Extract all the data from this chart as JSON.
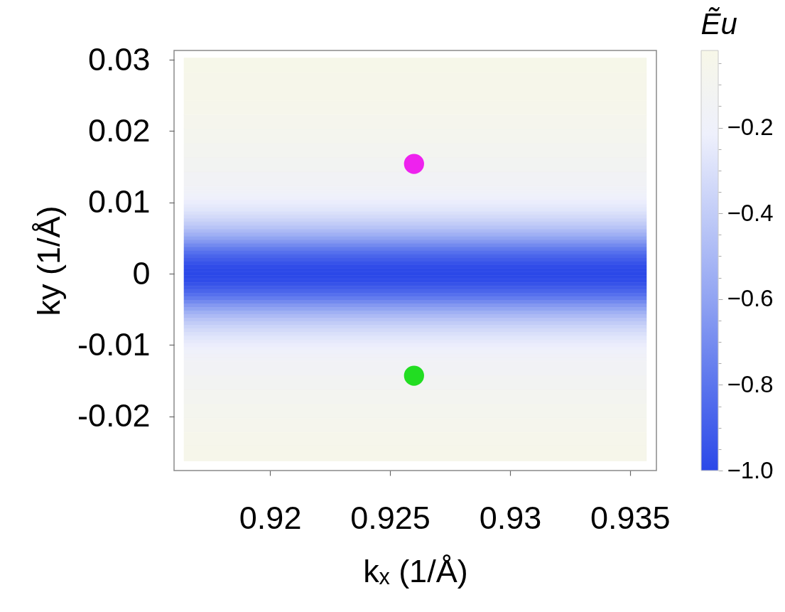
{
  "chart_data": {
    "type": "scatter",
    "xlabel": "kₓ (1/Å)",
    "ylabel": "ky (1/Å)",
    "clabel": "Ẽu",
    "xlim": [
      0.916,
      0.9361
    ],
    "ylim": [
      -0.0276,
      0.0313
    ],
    "xticks": [
      0.92,
      0.925,
      0.93,
      0.935
    ],
    "yticks": [
      0.03,
      0.02,
      0.01,
      0,
      -0.01,
      -0.02
    ],
    "clim": [
      -1.0,
      -0.02
    ],
    "cticks": [
      {
        "value": -1.0,
        "label": "−1.0"
      },
      {
        "value": -0.95,
        "label": null
      },
      {
        "value": -0.9,
        "label": null
      },
      {
        "value": -0.85,
        "label": null
      },
      {
        "value": -0.8,
        "label": "−0.8"
      },
      {
        "value": -0.75,
        "label": null
      },
      {
        "value": -0.7,
        "label": null
      },
      {
        "value": -0.65,
        "label": null
      },
      {
        "value": -0.6,
        "label": "−0.6"
      },
      {
        "value": -0.55,
        "label": null
      },
      {
        "value": -0.5,
        "label": null
      },
      {
        "value": -0.45,
        "label": null
      },
      {
        "value": -0.4,
        "label": "−0.4"
      },
      {
        "value": -0.35,
        "label": null
      },
      {
        "value": -0.3,
        "label": null
      },
      {
        "value": -0.25,
        "label": null
      },
      {
        "value": -0.2,
        "label": "−0.2"
      },
      {
        "value": -0.15,
        "label": null
      },
      {
        "value": -0.1,
        "label": null
      },
      {
        "value": -0.05,
        "label": null
      }
    ],
    "series": [
      {
        "x": [
          0.926
        ],
        "values": [
          0.0154
        ],
        "color": "#ee22ee"
      },
      {
        "x": [
          0.926
        ],
        "values": [
          -0.0143
        ],
        "color": "#22dd22"
      }
    ],
    "marker": "circle",
    "bands": [
      {
        "axis": "y",
        "from": 0.02825,
        "to": 0.03025,
        "color": "#f6f7e9"
      },
      {
        "axis": "y",
        "from": 0.02425,
        "to": 0.02825,
        "color": "#f6f6ea"
      },
      {
        "axis": "y",
        "from": 0.02225,
        "to": 0.02425,
        "color": "#f6f6eb"
      },
      {
        "axis": "y",
        "from": 0.02025,
        "to": 0.02225,
        "color": "#f5f5ed"
      },
      {
        "axis": "y",
        "from": 0.01825,
        "to": 0.02025,
        "color": "#f4f5ee"
      },
      {
        "axis": "y",
        "from": 0.01625,
        "to": 0.01825,
        "color": "#f3f4f0"
      },
      {
        "axis": "y",
        "from": 0.01425,
        "to": 0.01625,
        "color": "#f2f3f2"
      },
      {
        "axis": "y",
        "from": 0.01225,
        "to": 0.01425,
        "color": "#f1f2f5"
      },
      {
        "axis": "y",
        "from": 0.01175,
        "to": 0.01225,
        "color": "#f0f2f7"
      },
      {
        "axis": "y",
        "from": 0.01125,
        "to": 0.01175,
        "color": "#f0f1f8"
      },
      {
        "axis": "y",
        "from": 0.01075,
        "to": 0.01125,
        "color": "#eff1fa"
      },
      {
        "axis": "y",
        "from": 0.01025,
        "to": 0.01075,
        "color": "#eef0fb"
      },
      {
        "axis": "y",
        "from": 0.00975,
        "to": 0.01025,
        "color": "#ebedfc"
      },
      {
        "axis": "y",
        "from": 0.00925,
        "to": 0.00975,
        "color": "#e6e9fb"
      },
      {
        "axis": "y",
        "from": 0.00875,
        "to": 0.00925,
        "color": "#e1e6fb"
      },
      {
        "axis": "y",
        "from": 0.00825,
        "to": 0.00875,
        "color": "#dae0fa"
      },
      {
        "axis": "y",
        "from": 0.00775,
        "to": 0.00825,
        "color": "#d3daf9"
      },
      {
        "axis": "y",
        "from": 0.00725,
        "to": 0.00775,
        "color": "#cbd4f8"
      },
      {
        "axis": "y",
        "from": 0.00675,
        "to": 0.00725,
        "color": "#c2ccf7"
      },
      {
        "axis": "y",
        "from": 0.00625,
        "to": 0.00675,
        "color": "#b8c4f6"
      },
      {
        "axis": "y",
        "from": 0.00575,
        "to": 0.00625,
        "color": "#acbaf5"
      },
      {
        "axis": "y",
        "from": 0.00525,
        "to": 0.00575,
        "color": "#a0b0f4"
      },
      {
        "axis": "y",
        "from": 0.00475,
        "to": 0.00525,
        "color": "#91a4f2"
      },
      {
        "axis": "y",
        "from": 0.00425,
        "to": 0.00475,
        "color": "#8498f1"
      },
      {
        "axis": "y",
        "from": 0.00375,
        "to": 0.00425,
        "color": "#738aef"
      },
      {
        "axis": "y",
        "from": 0.00325,
        "to": 0.00375,
        "color": "#637cee"
      },
      {
        "axis": "y",
        "from": 0.00275,
        "to": 0.00325,
        "color": "#5670ed"
      },
      {
        "axis": "y",
        "from": 0.00225,
        "to": 0.00275,
        "color": "#4a65eb"
      },
      {
        "axis": "y",
        "from": 0.00175,
        "to": 0.00225,
        "color": "#415cea"
      },
      {
        "axis": "y",
        "from": 0.00125,
        "to": 0.00175,
        "color": "#3753e9"
      },
      {
        "axis": "y",
        "from": 0.00075,
        "to": 0.00125,
        "color": "#304ce9"
      },
      {
        "axis": "y",
        "from": 0.00025,
        "to": 0.00075,
        "color": "#2d4ae8"
      },
      {
        "axis": "y",
        "from": -0.00025,
        "to": 0.00025,
        "color": "#2b48e8"
      },
      {
        "axis": "y",
        "from": -0.00075,
        "to": -0.00025,
        "color": "#2d4ae8"
      },
      {
        "axis": "y",
        "from": -0.00125,
        "to": -0.00075,
        "color": "#304ce9"
      },
      {
        "axis": "y",
        "from": -0.00175,
        "to": -0.00125,
        "color": "#3753e9"
      },
      {
        "axis": "y",
        "from": -0.00225,
        "to": -0.00175,
        "color": "#415cea"
      },
      {
        "axis": "y",
        "from": -0.00275,
        "to": -0.00225,
        "color": "#4a65eb"
      },
      {
        "axis": "y",
        "from": -0.00325,
        "to": -0.00275,
        "color": "#5670ed"
      },
      {
        "axis": "y",
        "from": -0.00375,
        "to": -0.00325,
        "color": "#637cee"
      },
      {
        "axis": "y",
        "from": -0.00425,
        "to": -0.00375,
        "color": "#738aef"
      },
      {
        "axis": "y",
        "from": -0.00475,
        "to": -0.00425,
        "color": "#8498f1"
      },
      {
        "axis": "y",
        "from": -0.00525,
        "to": -0.00475,
        "color": "#91a4f2"
      },
      {
        "axis": "y",
        "from": -0.00575,
        "to": -0.00525,
        "color": "#a0b0f4"
      },
      {
        "axis": "y",
        "from": -0.00625,
        "to": -0.00575,
        "color": "#acbaf5"
      },
      {
        "axis": "y",
        "from": -0.00675,
        "to": -0.00625,
        "color": "#b8c4f6"
      },
      {
        "axis": "y",
        "from": -0.00725,
        "to": -0.00675,
        "color": "#c2ccf7"
      },
      {
        "axis": "y",
        "from": -0.00775,
        "to": -0.00725,
        "color": "#cbd4f8"
      },
      {
        "axis": "y",
        "from": -0.00825,
        "to": -0.00775,
        "color": "#d3daf9"
      },
      {
        "axis": "y",
        "from": -0.00875,
        "to": -0.00825,
        "color": "#dae0fa"
      },
      {
        "axis": "y",
        "from": -0.00925,
        "to": -0.00875,
        "color": "#e1e6fb"
      },
      {
        "axis": "y",
        "from": -0.00975,
        "to": -0.00925,
        "color": "#e6e9fb"
      },
      {
        "axis": "y",
        "from": -0.01025,
        "to": -0.00975,
        "color": "#ebedfc"
      },
      {
        "axis": "y",
        "from": -0.01075,
        "to": -0.01025,
        "color": "#eef0fb"
      },
      {
        "axis": "y",
        "from": -0.01125,
        "to": -0.01075,
        "color": "#eff1fa"
      },
      {
        "axis": "y",
        "from": -0.01175,
        "to": -0.01125,
        "color": "#f0f1f8"
      },
      {
        "axis": "y",
        "from": -0.01225,
        "to": -0.01175,
        "color": "#f0f2f7"
      },
      {
        "axis": "y",
        "from": -0.01425,
        "to": -0.01225,
        "color": "#f1f2f5"
      },
      {
        "axis": "y",
        "from": -0.01625,
        "to": -0.01425,
        "color": "#f2f3f2"
      },
      {
        "axis": "y",
        "from": -0.01825,
        "to": -0.01625,
        "color": "#f3f4f0"
      },
      {
        "axis": "y",
        "from": -0.02025,
        "to": -0.01825,
        "color": "#f4f5ee"
      },
      {
        "axis": "y",
        "from": -0.02225,
        "to": -0.02025,
        "color": "#f5f5ed"
      },
      {
        "axis": "y",
        "from": -0.02425,
        "to": -0.02225,
        "color": "#f6f6eb"
      },
      {
        "axis": "y",
        "from": -0.02625,
        "to": -0.02425,
        "color": "#f6f6ea"
      }
    ]
  }
}
